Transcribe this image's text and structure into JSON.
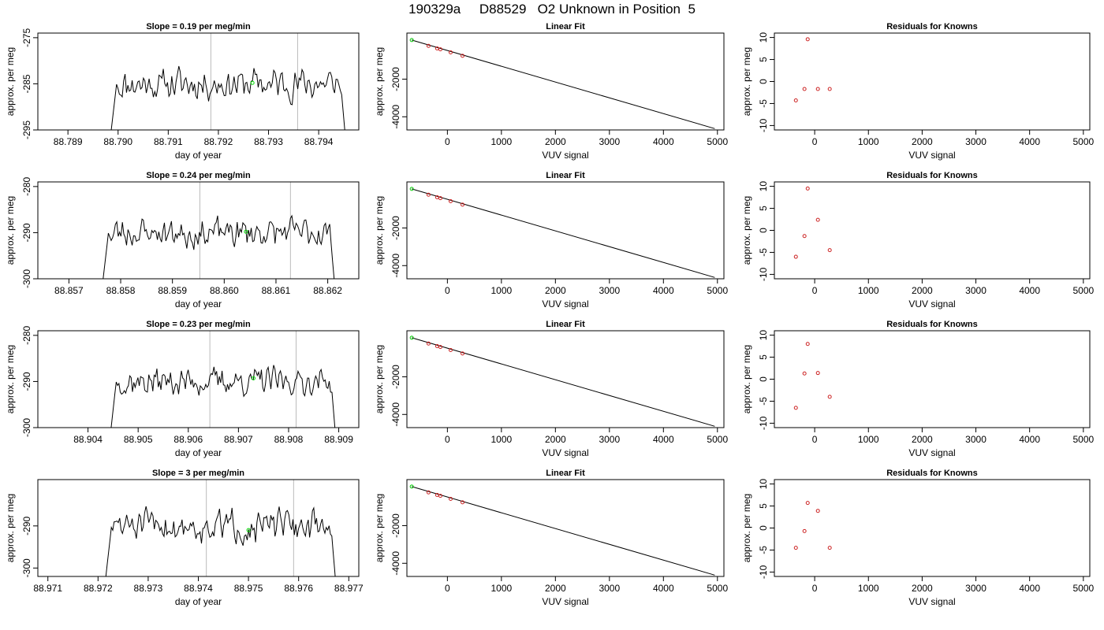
{
  "page": {
    "title": "190329a     D88529   O2 Unknown in Position  5"
  },
  "chart_data": [
    {
      "type": "line",
      "row": 1,
      "panel": "trace",
      "title": "Slope =  0.19  per meg/min",
      "xlabel": "day of year",
      "ylabel": "approx. per meg",
      "xlim": [
        88.7884,
        88.7948
      ],
      "xticks": [
        "88.789",
        "88.790",
        "88.791",
        "88.792",
        "88.793",
        "88.794"
      ],
      "ylim": [
        -295,
        -274
      ],
      "yticks": [
        "-295",
        "-285",
        "-275"
      ],
      "x_start": 88.7898,
      "x_end": 88.7946,
      "baseline": -285,
      "noise_amp": 4.5,
      "seed": 11,
      "vlines": [
        88.79185,
        88.79358
      ],
      "marker": {
        "x": 88.79268,
        "y": -284.8,
        "color": "#00dd00"
      }
    },
    {
      "type": "scatter",
      "row": 1,
      "panel": "fit",
      "title": "Linear Fit",
      "xlabel": "VUV signal",
      "ylabel": "approx. per meg",
      "xlim": [
        -750,
        5120
      ],
      "xticks": [
        "0",
        "1000",
        "2000",
        "3000",
        "4000",
        "5000"
      ],
      "ylim": [
        -4700,
        450
      ],
      "yticks": [
        "-4000",
        "-2000"
      ],
      "line": {
        "x": [
          -660,
          4950
        ],
        "y": [
          80,
          -4630
        ]
      },
      "points": {
        "x": [
          -350,
          -190,
          -130,
          60,
          280
        ],
        "y": [
          -230,
          -365,
          -415,
          -575,
          -760
        ],
        "color": "#cc2222"
      },
      "green_point": {
        "x": -660,
        "y": 80,
        "color": "#00cc00"
      }
    },
    {
      "type": "scatter",
      "row": 1,
      "panel": "residuals",
      "title": "Residuals for Knowns",
      "xlabel": "VUV signal",
      "ylabel": "approx. per meg",
      "xlim": [
        -750,
        5120
      ],
      "xticks": [
        "0",
        "1000",
        "2000",
        "3000",
        "4000",
        "5000"
      ],
      "ylim": [
        -11,
        11
      ],
      "yticks": [
        "-10",
        "-5",
        "0",
        "5",
        "10"
      ],
      "points": {
        "x": [
          -350,
          -190,
          -130,
          60,
          280
        ],
        "y": [
          -4.3,
          -1.7,
          9.6,
          -1.7,
          -1.7
        ],
        "color": "#cc2222"
      }
    },
    {
      "type": "line",
      "row": 2,
      "panel": "trace",
      "title": "Slope =  0.24  per meg/min",
      "xlabel": "day of year",
      "ylabel": "approx. per meg",
      "xlim": [
        88.8564,
        88.8626
      ],
      "xticks": [
        "88.857",
        "88.858",
        "88.859",
        "88.860",
        "88.861",
        "88.862"
      ],
      "ylim": [
        -300,
        -279
      ],
      "yticks": [
        "-300",
        "-290",
        "-280"
      ],
      "x_start": 88.8576,
      "x_end": 88.8622,
      "baseline": -290,
      "noise_amp": 4.2,
      "seed": 23,
      "vlines": [
        88.85953,
        88.86128
      ],
      "marker": {
        "x": 88.86042,
        "y": -289.8,
        "color": "#00dd00"
      }
    },
    {
      "type": "scatter",
      "row": 2,
      "panel": "fit",
      "title": "Linear Fit",
      "xlabel": "VUV signal",
      "ylabel": "approx. per meg",
      "xlim": [
        -750,
        5120
      ],
      "xticks": [
        "0",
        "1000",
        "2000",
        "3000",
        "4000",
        "5000"
      ],
      "ylim": [
        -4700,
        450
      ],
      "yticks": [
        "-4000",
        "-2000"
      ],
      "line": {
        "x": [
          -660,
          4950
        ],
        "y": [
          80,
          -4630
        ]
      },
      "points": {
        "x": [
          -350,
          -190,
          -130,
          60,
          280
        ],
        "y": [
          -230,
          -365,
          -415,
          -575,
          -760
        ],
        "color": "#cc2222"
      },
      "green_point": {
        "x": -660,
        "y": 80,
        "color": "#00cc00"
      }
    },
    {
      "type": "scatter",
      "row": 2,
      "panel": "residuals",
      "title": "Residuals for Knowns",
      "xlabel": "VUV signal",
      "ylabel": "approx. per meg",
      "xlim": [
        -750,
        5120
      ],
      "xticks": [
        "0",
        "1000",
        "2000",
        "3000",
        "4000",
        "5000"
      ],
      "ylim": [
        -11,
        11
      ],
      "yticks": [
        "-10",
        "-5",
        "0",
        "5",
        "10"
      ],
      "points": {
        "x": [
          -350,
          -190,
          -130,
          60,
          280
        ],
        "y": [
          -6.0,
          -1.3,
          9.5,
          2.4,
          -4.5
        ],
        "color": "#cc2222"
      }
    },
    {
      "type": "line",
      "row": 3,
      "panel": "trace",
      "title": "Slope =  0.23  per meg/min",
      "xlabel": "day of year",
      "ylabel": "approx. per meg",
      "xlim": [
        88.903,
        88.9094
      ],
      "xticks": [
        "88.904",
        "88.905",
        "88.906",
        "88.907",
        "88.908",
        "88.909"
      ],
      "ylim": [
        -300,
        -279
      ],
      "yticks": [
        "-300",
        "-290",
        "-280"
      ],
      "x_start": 88.9044,
      "x_end": 88.909,
      "baseline": -290,
      "noise_amp": 4.0,
      "seed": 37,
      "vlines": [
        88.90643,
        88.90815
      ],
      "marker": {
        "x": 88.9073,
        "y": -289.3,
        "color": "#00dd00"
      }
    },
    {
      "type": "scatter",
      "row": 3,
      "panel": "fit",
      "title": "Linear Fit",
      "xlabel": "VUV signal",
      "ylabel": "approx. per meg",
      "xlim": [
        -750,
        5120
      ],
      "xticks": [
        "0",
        "1000",
        "2000",
        "3000",
        "4000",
        "5000"
      ],
      "ylim": [
        -4700,
        450
      ],
      "yticks": [
        "-4000",
        "-2000"
      ],
      "line": {
        "x": [
          -660,
          4950
        ],
        "y": [
          80,
          -4630
        ]
      },
      "points": {
        "x": [
          -350,
          -190,
          -130,
          60,
          280
        ],
        "y": [
          -230,
          -365,
          -415,
          -575,
          -760
        ],
        "color": "#cc2222"
      },
      "green_point": {
        "x": -660,
        "y": 80,
        "color": "#00cc00"
      }
    },
    {
      "type": "scatter",
      "row": 3,
      "panel": "residuals",
      "title": "Residuals for Knowns",
      "xlabel": "VUV signal",
      "ylabel": "approx. per meg",
      "xlim": [
        -750,
        5120
      ],
      "xticks": [
        "0",
        "1000",
        "2000",
        "3000",
        "4000",
        "5000"
      ],
      "ylim": [
        -11,
        11
      ],
      "yticks": [
        "-10",
        "-5",
        "0",
        "5",
        "10"
      ],
      "points": {
        "x": [
          -350,
          -190,
          -130,
          60,
          280
        ],
        "y": [
          -6.5,
          1.3,
          8.0,
          1.4,
          -4.0
        ],
        "color": "#cc2222"
      }
    },
    {
      "type": "line",
      "row": 4,
      "panel": "trace",
      "title": "Slope =  3  per meg/min",
      "xlabel": "day of year",
      "ylabel": "approx. per meg",
      "xlim": [
        88.9708,
        88.9772
      ],
      "xticks": [
        "88.971",
        "88.972",
        "88.973",
        "88.974",
        "88.975",
        "88.976",
        "88.977"
      ],
      "ylim": [
        -302,
        -279
      ],
      "yticks": [
        "-300",
        "-290"
      ],
      "x_start": 88.9721,
      "x_end": 88.9768,
      "baseline": -290,
      "noise_amp": 5.0,
      "seed": 51,
      "vlines": [
        88.97416,
        88.9759
      ],
      "marker": {
        "x": 88.975,
        "y": -291,
        "color": "#00dd00"
      }
    },
    {
      "type": "scatter",
      "row": 4,
      "panel": "fit",
      "title": "Linear Fit",
      "xlabel": "VUV signal",
      "ylabel": "approx. per meg",
      "xlim": [
        -750,
        5120
      ],
      "xticks": [
        "0",
        "1000",
        "2000",
        "3000",
        "4000",
        "5000"
      ],
      "ylim": [
        -4700,
        450
      ],
      "yticks": [
        "-4000",
        "-2000"
      ],
      "line": {
        "x": [
          -660,
          4950
        ],
        "y": [
          80,
          -4630
        ]
      },
      "points": {
        "x": [
          -350,
          -190,
          -130,
          60,
          280
        ],
        "y": [
          -230,
          -365,
          -415,
          -575,
          -760
        ],
        "color": "#cc2222"
      },
      "green_point": {
        "x": -660,
        "y": 80,
        "color": "#00cc00"
      }
    },
    {
      "type": "scatter",
      "row": 4,
      "panel": "residuals",
      "title": "Residuals for Knowns",
      "xlabel": "VUV signal",
      "ylabel": "approx. per meg",
      "xlim": [
        -750,
        5120
      ],
      "xticks": [
        "0",
        "1000",
        "2000",
        "3000",
        "4000",
        "5000"
      ],
      "ylim": [
        -11,
        11
      ],
      "yticks": [
        "-10",
        "-5",
        "0",
        "5",
        "10"
      ],
      "points": {
        "x": [
          -350,
          -190,
          -130,
          60,
          280
        ],
        "y": [
          -4.5,
          -0.7,
          5.7,
          3.9,
          -4.5
        ],
        "color": "#cc2222"
      }
    }
  ]
}
